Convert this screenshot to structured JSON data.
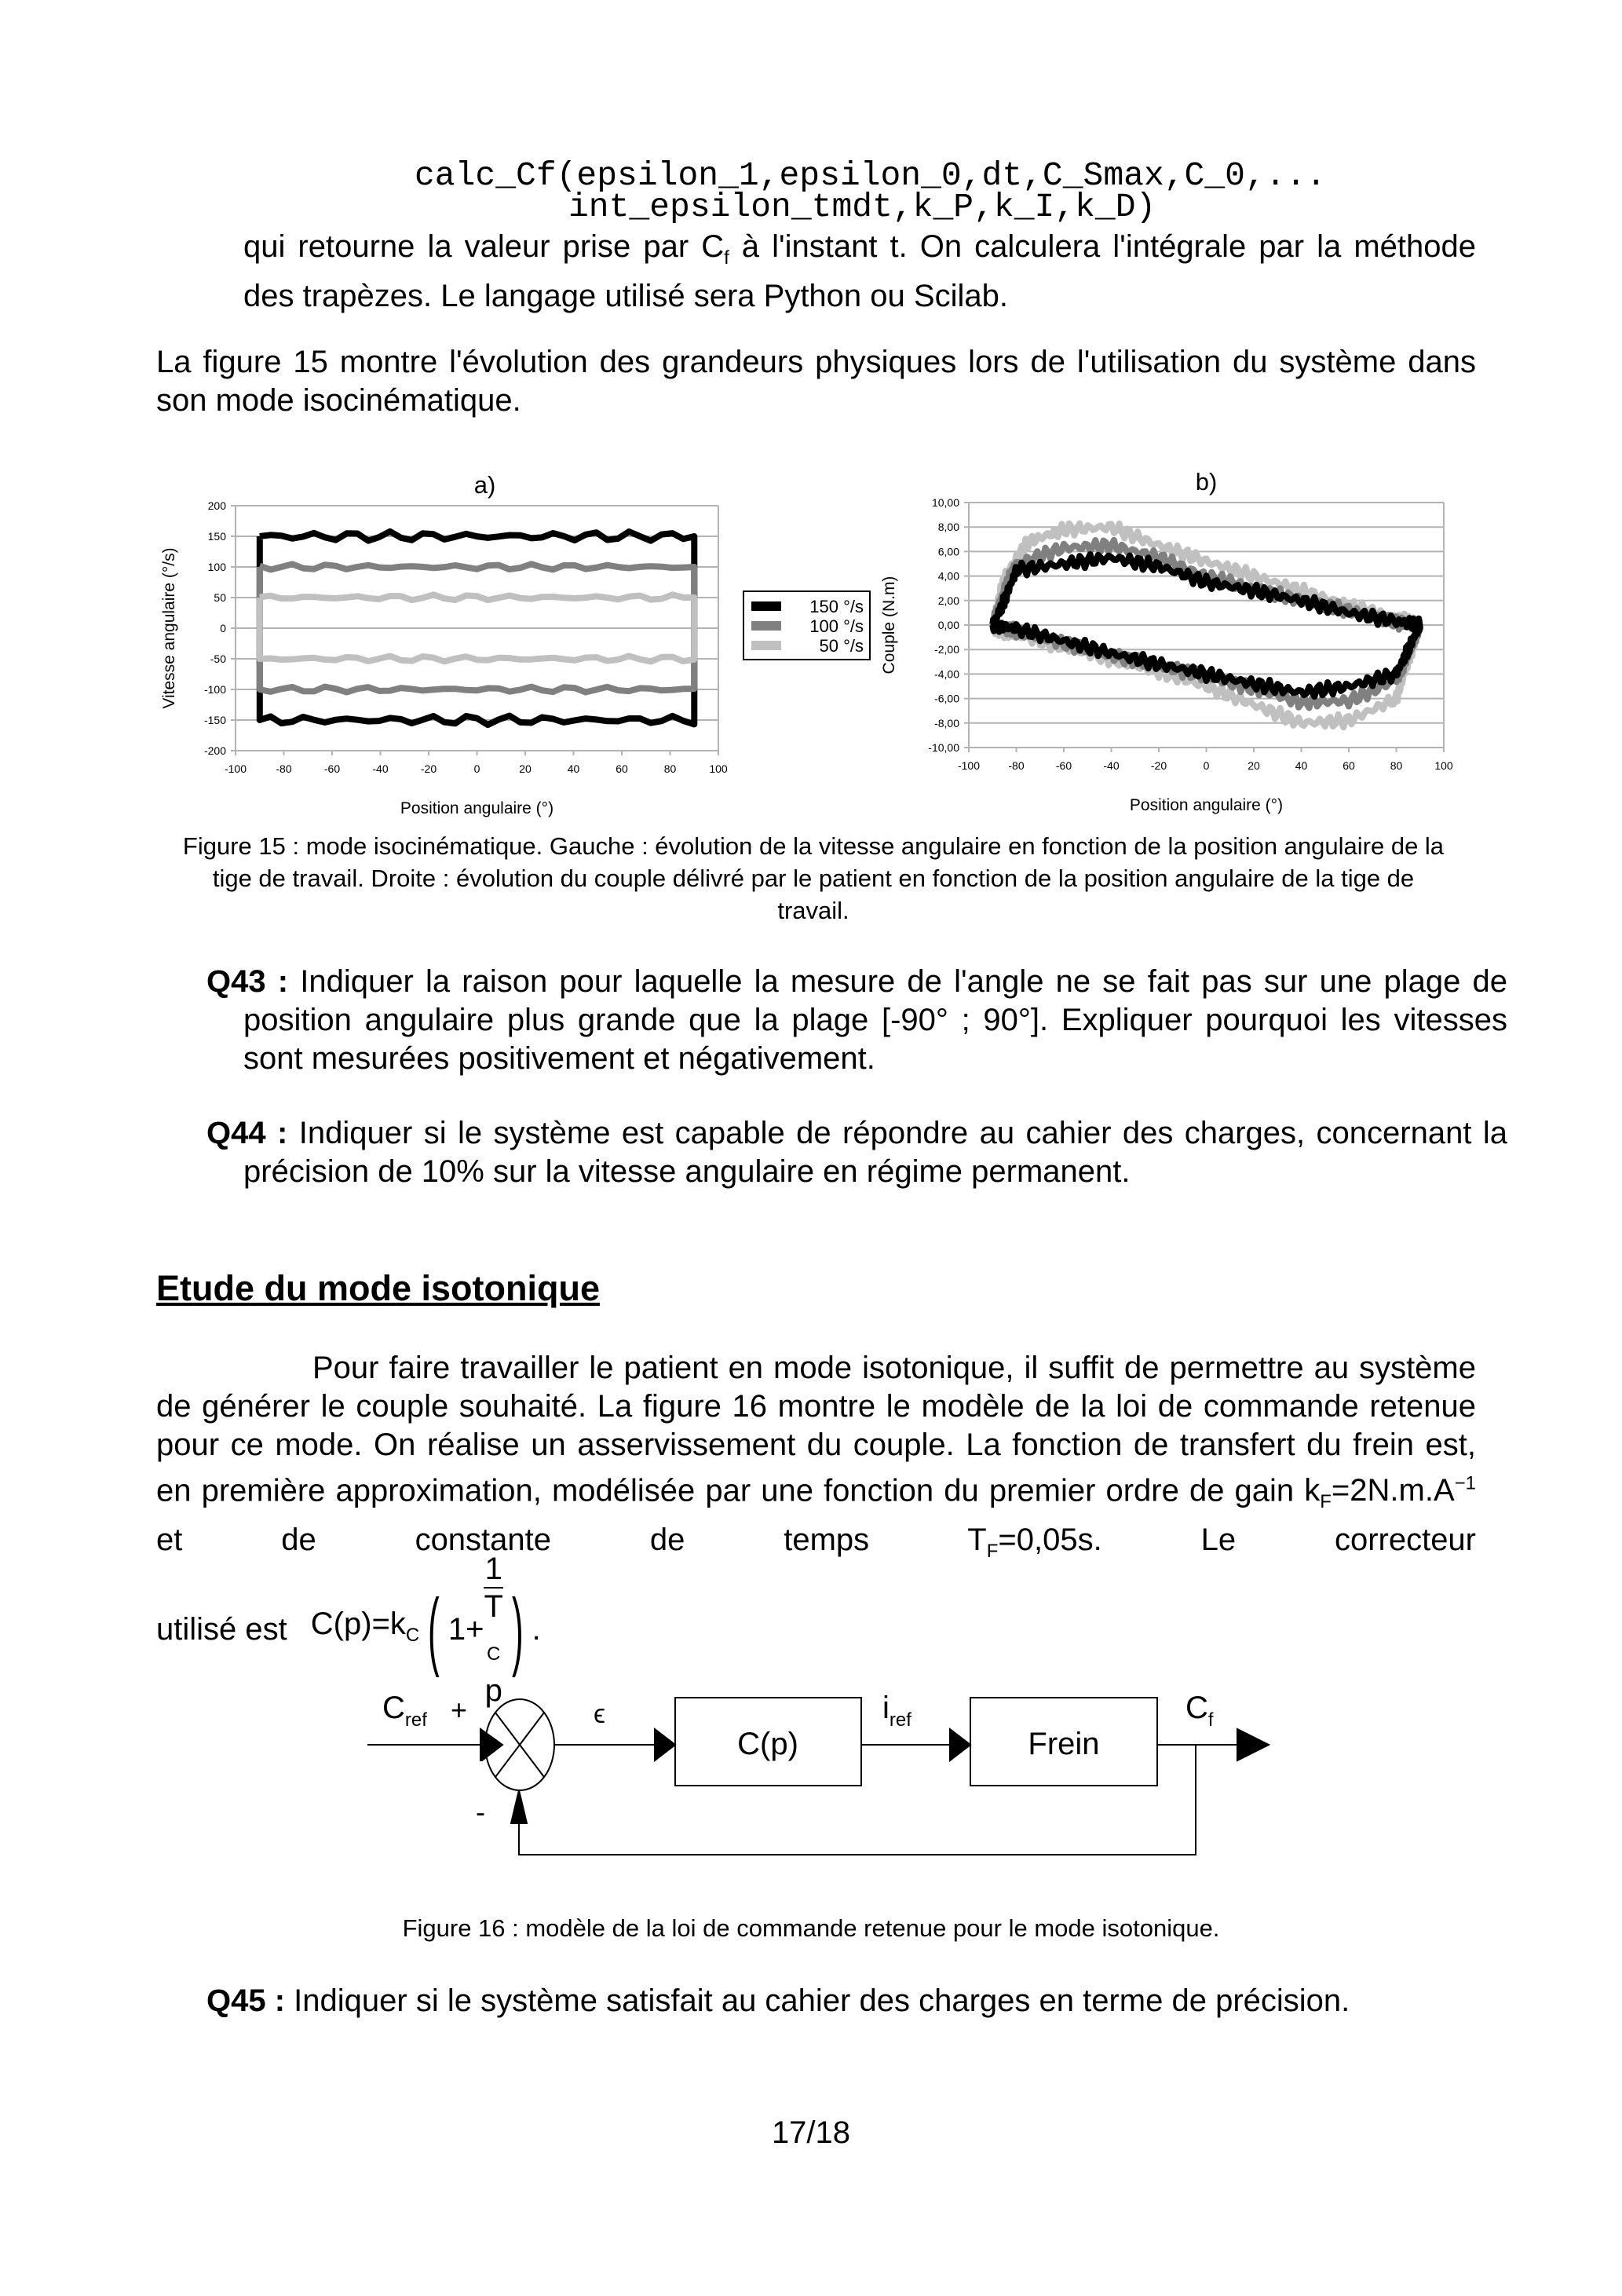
{
  "code": {
    "line1": "calc_Cf(epsilon_1,epsilon_0,dt,C_Smax,C_0,...",
    "line2": "int_epsilon_tmdt,k_P,k_I,k_D)"
  },
  "p1": {
    "before": "qui retourne la valeur prise par ",
    "sym": "C",
    "sub": "f",
    "after": " à l'instant t. On calculera l'intégrale par la méthode des trapèzes. Le langage utilisé sera Python ou Scilab."
  },
  "p2": "La figure 15 montre l'évolution des grandeurs physiques lors de l'utilisation du système dans son mode isocinématique.",
  "chart_data": [
    {
      "type": "line",
      "title": "a)",
      "xlabel": "Position angulaire (°)",
      "ylabel": "Vitesse angulaire (°/s)",
      "xlim": [
        -100,
        100
      ],
      "ylim": [
        -200,
        200
      ],
      "grid": "horizontal",
      "xticks": [
        "-100",
        "-80",
        "-60",
        "-40",
        "-20",
        "0",
        "20",
        "40",
        "60",
        "80",
        "100"
      ],
      "yticks": [
        "200",
        "150",
        "100",
        "50",
        "0",
        "-50",
        "-100",
        "-150",
        "-200"
      ],
      "legend": "right",
      "series": [
        {
          "name": "150 °/s",
          "color": "#000000",
          "points": [
            [
              -90,
              150
            ],
            [
              90,
              150
            ],
            [
              90,
              -150
            ],
            [
              -90,
              -150
            ],
            [
              -90,
              150
            ]
          ]
        },
        {
          "name": "100 °/s",
          "color": "#808080",
          "points": [
            [
              -90,
              100
            ],
            [
              90,
              100
            ],
            [
              90,
              -100
            ],
            [
              -90,
              -100
            ],
            [
              -90,
              100
            ]
          ]
        },
        {
          "name": "50 °/s",
          "color": "#c0c0c0",
          "points": [
            [
              -90,
              50
            ],
            [
              90,
              50
            ],
            [
              90,
              -50
            ],
            [
              -90,
              -50
            ],
            [
              -90,
              50
            ]
          ]
        }
      ]
    },
    {
      "type": "line",
      "title": "b)",
      "xlabel": "Position angulaire (°)",
      "ylabel": "Couple (N.m)",
      "xlim": [
        -100,
        100
      ],
      "ylim": [
        -10,
        10
      ],
      "grid": "horizontal",
      "xticks": [
        "-100",
        "-80",
        "-60",
        "-40",
        "-20",
        "0",
        "20",
        "40",
        "60",
        "80",
        "100"
      ],
      "yticks": [
        "10,00",
        "8,00",
        "6,00",
        "4,00",
        "2,00",
        "0,00",
        "-2,00",
        "-4,00",
        "-6,00",
        "-8,00",
        "-10,00"
      ],
      "series": [
        {
          "color": "#c0c0c0",
          "points": [
            [
              -90,
              0
            ],
            [
              -85,
              4
            ],
            [
              -75,
              6.8
            ],
            [
              -60,
              7.8
            ],
            [
              -40,
              8
            ],
            [
              -20,
              6.5
            ],
            [
              0,
              5.2
            ],
            [
              20,
              4
            ],
            [
              40,
              2.8
            ],
            [
              60,
              1.6
            ],
            [
              80,
              0.6
            ],
            [
              90,
              0
            ],
            [
              85,
              -3
            ],
            [
              80,
              -6
            ],
            [
              60,
              -7.8
            ],
            [
              40,
              -8
            ],
            [
              20,
              -6.5
            ],
            [
              0,
              -5
            ],
            [
              -20,
              -3.8
            ],
            [
              -40,
              -2.8
            ],
            [
              -60,
              -1.8
            ],
            [
              -80,
              -0.8
            ],
            [
              -90,
              -0.3
            ]
          ]
        },
        {
          "color": "#808080",
          "points": [
            [
              -90,
              0
            ],
            [
              -85,
              3
            ],
            [
              -80,
              5
            ],
            [
              -60,
              6.3
            ],
            [
              -40,
              6.5
            ],
            [
              -20,
              5.5
            ],
            [
              0,
              4
            ],
            [
              20,
              3
            ],
            [
              40,
              2
            ],
            [
              60,
              1.2
            ],
            [
              80,
              0.2
            ],
            [
              90,
              0
            ],
            [
              85,
              -2.5
            ],
            [
              80,
              -4.5
            ],
            [
              60,
              -6.2
            ],
            [
              40,
              -6.3
            ],
            [
              20,
              -5.2
            ],
            [
              0,
              -4.2
            ],
            [
              -20,
              -3.3
            ],
            [
              -40,
              -2.5
            ],
            [
              -60,
              -1.5
            ],
            [
              -80,
              -0.5
            ],
            [
              -90,
              0
            ]
          ]
        },
        {
          "color": "#000000",
          "points": [
            [
              -90,
              0
            ],
            [
              -85,
              2
            ],
            [
              -80,
              4.5
            ],
            [
              -60,
              5
            ],
            [
              -40,
              5.5
            ],
            [
              -20,
              4.8
            ],
            [
              0,
              3.5
            ],
            [
              20,
              2.8
            ],
            [
              40,
              2
            ],
            [
              60,
              1
            ],
            [
              80,
              0.3
            ],
            [
              90,
              0
            ],
            [
              85,
              -2
            ],
            [
              80,
              -4
            ],
            [
              60,
              -5
            ],
            [
              40,
              -5.5
            ],
            [
              20,
              -4.8
            ],
            [
              0,
              -4
            ],
            [
              -20,
              -3.2
            ],
            [
              -40,
              -2.3
            ],
            [
              -60,
              -1.3
            ],
            [
              -80,
              -0.3
            ],
            [
              -90,
              0
            ]
          ]
        }
      ]
    }
  ],
  "fig15_caption": "Figure 15 : mode isocinématique. Gauche : évolution de la vitesse angulaire en fonction de la position angulaire de la tige de travail. Droite : évolution du couple délivré par le patient en fonction de la position angulaire de la tige de travail.",
  "q43": {
    "label": "Q43 :",
    "text": " Indiquer la raison pour laquelle la mesure de l'angle ne se fait pas sur une plage de position angulaire plus grande que la plage [-90° ; 90°]. Expliquer pourquoi les vitesses sont mesurées positivement et négativement."
  },
  "q44": {
    "label": "Q44 :",
    "text": " Indiquer si le système est capable de répondre au cahier des charges, concernant la précision de 10% sur la vitesse angulaire en régime permanent."
  },
  "heading": "Etude du mode isotonique",
  "p3": {
    "text": "Pour faire travailler le patient en mode isotonique, il suffit de permettre au système de générer le couple souhaité. La figure 16 montre le modèle de la loi de commande retenue pour ce mode. On réalise un asservissement du couple. La fonction de transfert du frein est, en première approximation, modélisée par une fonction du premier ordre de gain ",
    "kf": "k",
    "kf_sub": "F",
    "kf_val": "=2N.m.A",
    "kf_sup": "−1",
    "mid": " et de constante de temps ",
    "tf": "T",
    "tf_sub": "F",
    "tf_val": "=0,05s",
    "end": ". Le correcteur",
    "line2": "utilisé est",
    "cp": "C(p)=k",
    "cp_sub": "C",
    "one_plus": "1+",
    "num": "1",
    "den": "T",
    "den_sub": "C",
    "den_p": "p",
    "dot": "."
  },
  "diagram": {
    "cref": "C",
    "cref_sub": "ref",
    "plus": "+",
    "minus": "-",
    "eps": "ϵ",
    "block1": "C(p)",
    "iref": "i",
    "iref_sub": "ref",
    "block2": "Frein",
    "cf": "C",
    "cf_sub": "f"
  },
  "fig16_caption": "Figure 16 : modèle de la loi de commande retenue pour le mode isotonique.",
  "q45": {
    "label": "Q45 :",
    "text": " Indiquer si le système satisfait au cahier des charges en terme de précision."
  },
  "page_number": "17/18"
}
